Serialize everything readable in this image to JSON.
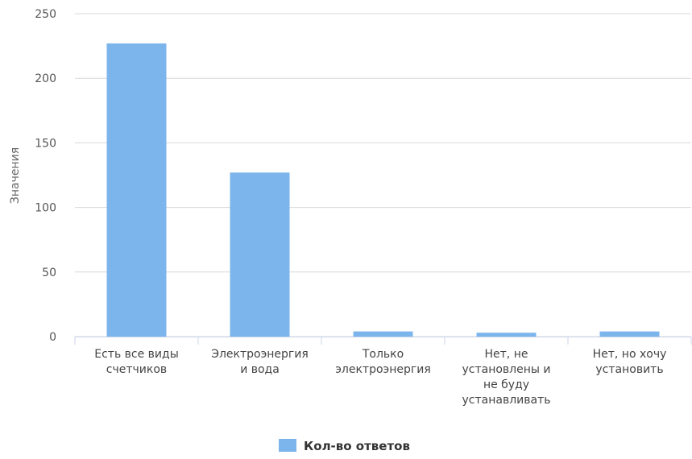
{
  "chart_data": {
    "type": "bar",
    "categories": [
      "Есть все виды счетчиков",
      "Электроэнергия и вода",
      "Только электроэнергия",
      "Нет, не установлены и не буду устанавливать",
      "Нет, но хочу установить"
    ],
    "category_lines": [
      [
        "Есть все виды",
        "счетчиков"
      ],
      [
        "Электроэнергия",
        "и вода"
      ],
      [
        "Только",
        "электроэнергия"
      ],
      [
        "Нет, не",
        "установлены и",
        "не буду",
        "устанавливать"
      ],
      [
        "Нет, но хочу",
        "установить"
      ]
    ],
    "series": [
      {
        "name": "Кол-во ответов",
        "values": [
          227,
          127,
          4,
          3,
          4
        ],
        "color": "#7cb5ec"
      }
    ],
    "ylabel": "Значения",
    "ylim": [
      0,
      250
    ],
    "yticks": [
      0,
      50,
      100,
      150,
      200,
      250
    ],
    "grid": true,
    "legend_position": "bottom-center"
  }
}
